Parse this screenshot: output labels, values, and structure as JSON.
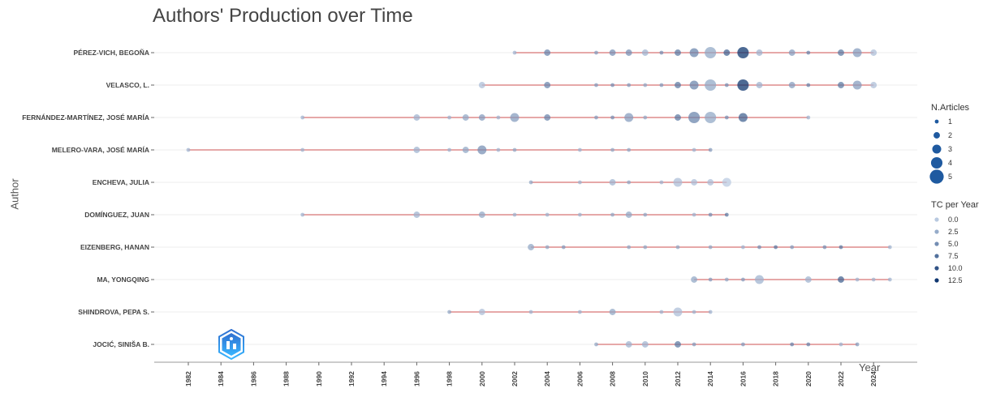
{
  "chart_data": {
    "type": "scatter",
    "title": "Authors' Production over Time",
    "xlabel": "Year",
    "ylabel": "Author",
    "xlim": [
      1980,
      2027
    ],
    "x_ticks": [
      1982,
      1984,
      1986,
      1988,
      1990,
      1992,
      1994,
      1996,
      1998,
      2000,
      2002,
      2004,
      2006,
      2008,
      2010,
      2012,
      2014,
      2016,
      2018,
      2020,
      2022,
      2024
    ],
    "grid": true,
    "legend_placement": "right",
    "colors": {
      "line": "#e6a8a8",
      "point_low": "#b8c9e0",
      "point_high": "#08306b"
    },
    "size_legend": {
      "title": "N.Articles",
      "values": [
        1,
        2,
        3,
        4,
        5
      ]
    },
    "color_legend": {
      "title": "TC per Year",
      "labels": [
        "0.0",
        "2.5",
        "5.0",
        "7.5",
        "10.0",
        "12.5"
      ]
    },
    "authors": [
      {
        "name": "PÉREZ-VICH, BEGOÑA",
        "points": [
          [
            2002,
            1,
            2
          ],
          [
            2004,
            2,
            6
          ],
          [
            2007,
            1,
            4
          ],
          [
            2008,
            2,
            5
          ],
          [
            2009,
            2,
            5
          ],
          [
            2010,
            2,
            2
          ],
          [
            2011,
            1,
            5
          ],
          [
            2012,
            2,
            7
          ],
          [
            2013,
            3,
            6
          ],
          [
            2014,
            4,
            3
          ],
          [
            2015,
            2,
            9
          ],
          [
            2016,
            4,
            13
          ],
          [
            2017,
            2,
            2
          ],
          [
            2019,
            2,
            4
          ],
          [
            2020,
            1,
            6
          ],
          [
            2022,
            2,
            7
          ],
          [
            2023,
            3,
            4
          ],
          [
            2024,
            2,
            1
          ]
        ]
      },
      {
        "name": "VELASCO, L.",
        "points": [
          [
            2000,
            2,
            1
          ],
          [
            2004,
            2,
            6
          ],
          [
            2007,
            1,
            4
          ],
          [
            2008,
            1,
            5
          ],
          [
            2009,
            1,
            4
          ],
          [
            2010,
            1,
            3
          ],
          [
            2011,
            1,
            4
          ],
          [
            2012,
            2,
            7
          ],
          [
            2013,
            3,
            6
          ],
          [
            2014,
            4,
            3
          ],
          [
            2015,
            1,
            5
          ],
          [
            2016,
            4,
            13
          ],
          [
            2017,
            2,
            2
          ],
          [
            2019,
            2,
            4
          ],
          [
            2020,
            1,
            6
          ],
          [
            2022,
            2,
            7
          ],
          [
            2023,
            3,
            4
          ],
          [
            2024,
            2,
            1
          ]
        ]
      },
      {
        "name": "FERNÁNDEZ-MARTÍNEZ, JOSÉ MARÍA",
        "points": [
          [
            1989,
            1,
            2
          ],
          [
            1996,
            2,
            2
          ],
          [
            1998,
            1,
            2
          ],
          [
            1999,
            2,
            3
          ],
          [
            2000,
            2,
            4
          ],
          [
            2001,
            1,
            2
          ],
          [
            2002,
            3,
            4
          ],
          [
            2004,
            2,
            6
          ],
          [
            2007,
            1,
            4
          ],
          [
            2008,
            1,
            5
          ],
          [
            2009,
            3,
            4
          ],
          [
            2010,
            1,
            3
          ],
          [
            2012,
            2,
            7
          ],
          [
            2013,
            4,
            6
          ],
          [
            2014,
            4,
            3
          ],
          [
            2015,
            1,
            5
          ],
          [
            2016,
            3,
            9
          ],
          [
            2020,
            1,
            2
          ]
        ]
      },
      {
        "name": "MELERO-VARA, JOSÉ MARÍA",
        "points": [
          [
            1982,
            1,
            2
          ],
          [
            1989,
            1,
            2
          ],
          [
            1996,
            2,
            2
          ],
          [
            1998,
            1,
            2
          ],
          [
            1999,
            2,
            3
          ],
          [
            2000,
            3,
            5
          ],
          [
            2001,
            1,
            2
          ],
          [
            2002,
            1,
            3
          ],
          [
            2006,
            1,
            2
          ],
          [
            2008,
            1,
            3
          ],
          [
            2009,
            1,
            3
          ],
          [
            2013,
            1,
            2
          ],
          [
            2014,
            1,
            4
          ]
        ]
      },
      {
        "name": "ENCHEVA, JULIA",
        "points": [
          [
            2003,
            1,
            3
          ],
          [
            2006,
            1,
            2
          ],
          [
            2008,
            2,
            2
          ],
          [
            2009,
            1,
            3
          ],
          [
            2011,
            1,
            2
          ],
          [
            2012,
            3,
            1
          ],
          [
            2013,
            2,
            1
          ],
          [
            2014,
            2,
            1
          ],
          [
            2015,
            3,
            0
          ]
        ]
      },
      {
        "name": "DOMÍNGUEZ, JUAN",
        "points": [
          [
            1989,
            1,
            2
          ],
          [
            1996,
            2,
            2
          ],
          [
            2000,
            2,
            3
          ],
          [
            2002,
            1,
            2
          ],
          [
            2004,
            1,
            2
          ],
          [
            2006,
            1,
            2
          ],
          [
            2008,
            1,
            3
          ],
          [
            2009,
            2,
            3
          ],
          [
            2010,
            1,
            3
          ],
          [
            2013,
            1,
            2
          ],
          [
            2014,
            1,
            5
          ],
          [
            2015,
            1,
            7
          ]
        ]
      },
      {
        "name": "EIZENBERG, HANAN",
        "points": [
          [
            2003,
            2,
            3
          ],
          [
            2004,
            1,
            3
          ],
          [
            2005,
            1,
            4
          ],
          [
            2009,
            1,
            3
          ],
          [
            2010,
            1,
            3
          ],
          [
            2012,
            1,
            3
          ],
          [
            2014,
            1,
            3
          ],
          [
            2016,
            1,
            2
          ],
          [
            2017,
            1,
            5
          ],
          [
            2018,
            1,
            7
          ],
          [
            2019,
            1,
            4
          ],
          [
            2021,
            1,
            5
          ],
          [
            2022,
            1,
            7
          ],
          [
            2025,
            1,
            2
          ]
        ]
      },
      {
        "name": "MA, YONGQING",
        "points": [
          [
            2013,
            2,
            3
          ],
          [
            2014,
            1,
            4
          ],
          [
            2015,
            1,
            3
          ],
          [
            2016,
            1,
            4
          ],
          [
            2017,
            3,
            2
          ],
          [
            2020,
            2,
            2
          ],
          [
            2022,
            2,
            9
          ],
          [
            2023,
            1,
            2
          ],
          [
            2024,
            1,
            2
          ],
          [
            2025,
            1,
            2
          ]
        ]
      },
      {
        "name": "SHINDROVA, PEPA S.",
        "points": [
          [
            1998,
            1,
            3
          ],
          [
            2000,
            2,
            1
          ],
          [
            2003,
            1,
            2
          ],
          [
            2006,
            1,
            2
          ],
          [
            2008,
            2,
            3
          ],
          [
            2011,
            1,
            2
          ],
          [
            2012,
            3,
            1
          ],
          [
            2013,
            1,
            2
          ],
          [
            2014,
            1,
            2
          ]
        ]
      },
      {
        "name": "JOCIĆ, SINIŠA B.",
        "points": [
          [
            2007,
            1,
            3
          ],
          [
            2009,
            2,
            2
          ],
          [
            2010,
            2,
            2
          ],
          [
            2012,
            2,
            7
          ],
          [
            2013,
            1,
            4
          ],
          [
            2016,
            1,
            4
          ],
          [
            2019,
            1,
            6
          ],
          [
            2020,
            1,
            6
          ],
          [
            2022,
            1,
            2
          ],
          [
            2023,
            1,
            4
          ]
        ]
      }
    ]
  }
}
